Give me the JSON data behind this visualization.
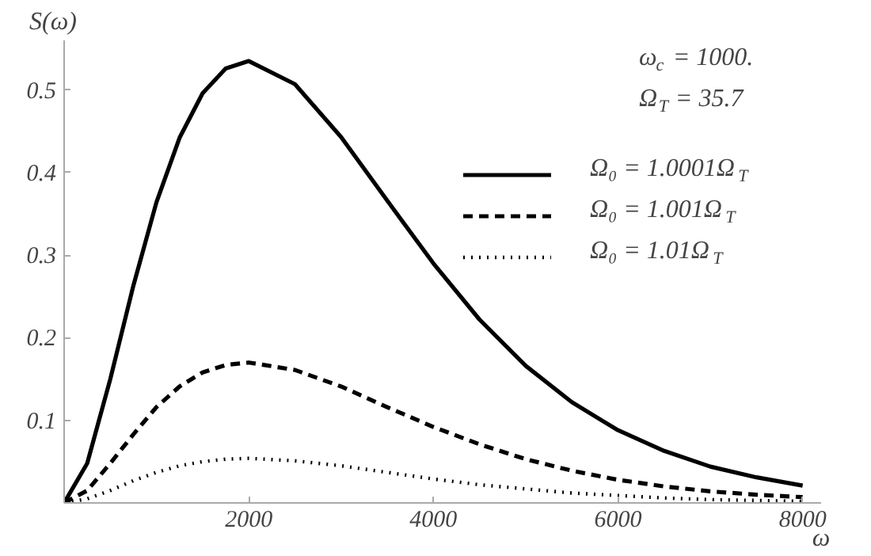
{
  "chart_data": {
    "type": "line",
    "xlabel": "ω",
    "ylabel": "S(ω)",
    "annotations": [
      "ω$_{c}$ = 1000.",
      "Ω$_{T}$ = 35.7"
    ],
    "x": [
      0,
      250,
      500,
      750,
      1000,
      1250,
      1500,
      1750,
      2000,
      2500,
      3000,
      3500,
      4000,
      4500,
      5000,
      5500,
      6000,
      6500,
      7000,
      7500,
      8000
    ],
    "series": [
      {
        "name": "Ω₀ = 1.0001Ω$_{T}$",
        "color": "#000000",
        "line_style": "solid",
        "values": [
          0,
          0.048,
          0.15,
          0.263,
          0.364,
          0.442,
          0.496,
          0.526,
          0.535,
          0.507,
          0.443,
          0.366,
          0.29,
          0.222,
          0.166,
          0.122,
          0.088,
          0.063,
          0.044,
          0.031,
          0.021
        ]
      },
      {
        "name": "Ω₀ = 1.001Ω$_{T}$",
        "color": "#000000",
        "line_style": "dashed",
        "values": [
          0,
          0.015,
          0.048,
          0.083,
          0.116,
          0.141,
          0.158,
          0.167,
          0.17,
          0.161,
          0.141,
          0.116,
          0.092,
          0.071,
          0.053,
          0.039,
          0.028,
          0.02,
          0.014,
          0.01,
          0.007
        ]
      },
      {
        "name": "Ω₀ = 1.01Ω$_{T}$",
        "color": "#000000",
        "line_style": "dotted",
        "values": [
          0,
          0.005,
          0.015,
          0.027,
          0.037,
          0.045,
          0.05,
          0.053,
          0.054,
          0.051,
          0.045,
          0.037,
          0.029,
          0.022,
          0.017,
          0.012,
          0.009,
          0.006,
          0.004,
          0.003,
          0.002
        ]
      }
    ],
    "xlim": [
      0,
      8200
    ],
    "ylim": [
      0,
      0.56
    ],
    "xticks": [
      2000,
      4000,
      6000,
      8000
    ],
    "yticks": [
      0.1,
      0.2,
      0.3,
      0.4,
      0.5
    ],
    "grid": false,
    "legend": "top right",
    "marker": "none"
  }
}
